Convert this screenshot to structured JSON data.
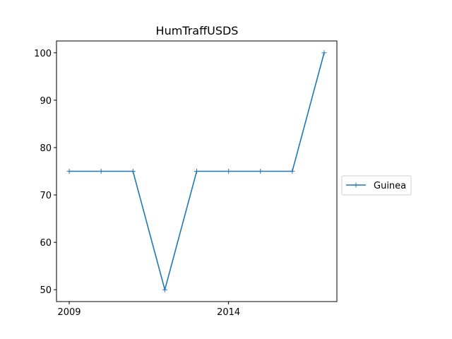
{
  "chart_data": {
    "type": "line",
    "title": "HumTraffUSDS",
    "xlabel": "",
    "ylabel": "",
    "x": [
      2009,
      2010,
      2011,
      2012,
      2013,
      2014,
      2015,
      2016,
      2017
    ],
    "series": [
      {
        "name": "Guinea",
        "color": "#1f77b4",
        "marker": "plus",
        "values": [
          75,
          75,
          75,
          50,
          75,
          75,
          75,
          75,
          100
        ]
      }
    ],
    "xlim": [
      2008.6,
      2017.4
    ],
    "ylim": [
      47.5,
      102.5
    ],
    "xticks": [
      2009,
      2014
    ],
    "xtick_labels": [
      "2009",
      "2014"
    ],
    "yticks": [
      50,
      60,
      70,
      80,
      90,
      100
    ],
    "ytick_labels": [
      "50",
      "60",
      "70",
      "80",
      "90",
      "100"
    ],
    "grid": false,
    "legend_position": "center-right-outside"
  }
}
